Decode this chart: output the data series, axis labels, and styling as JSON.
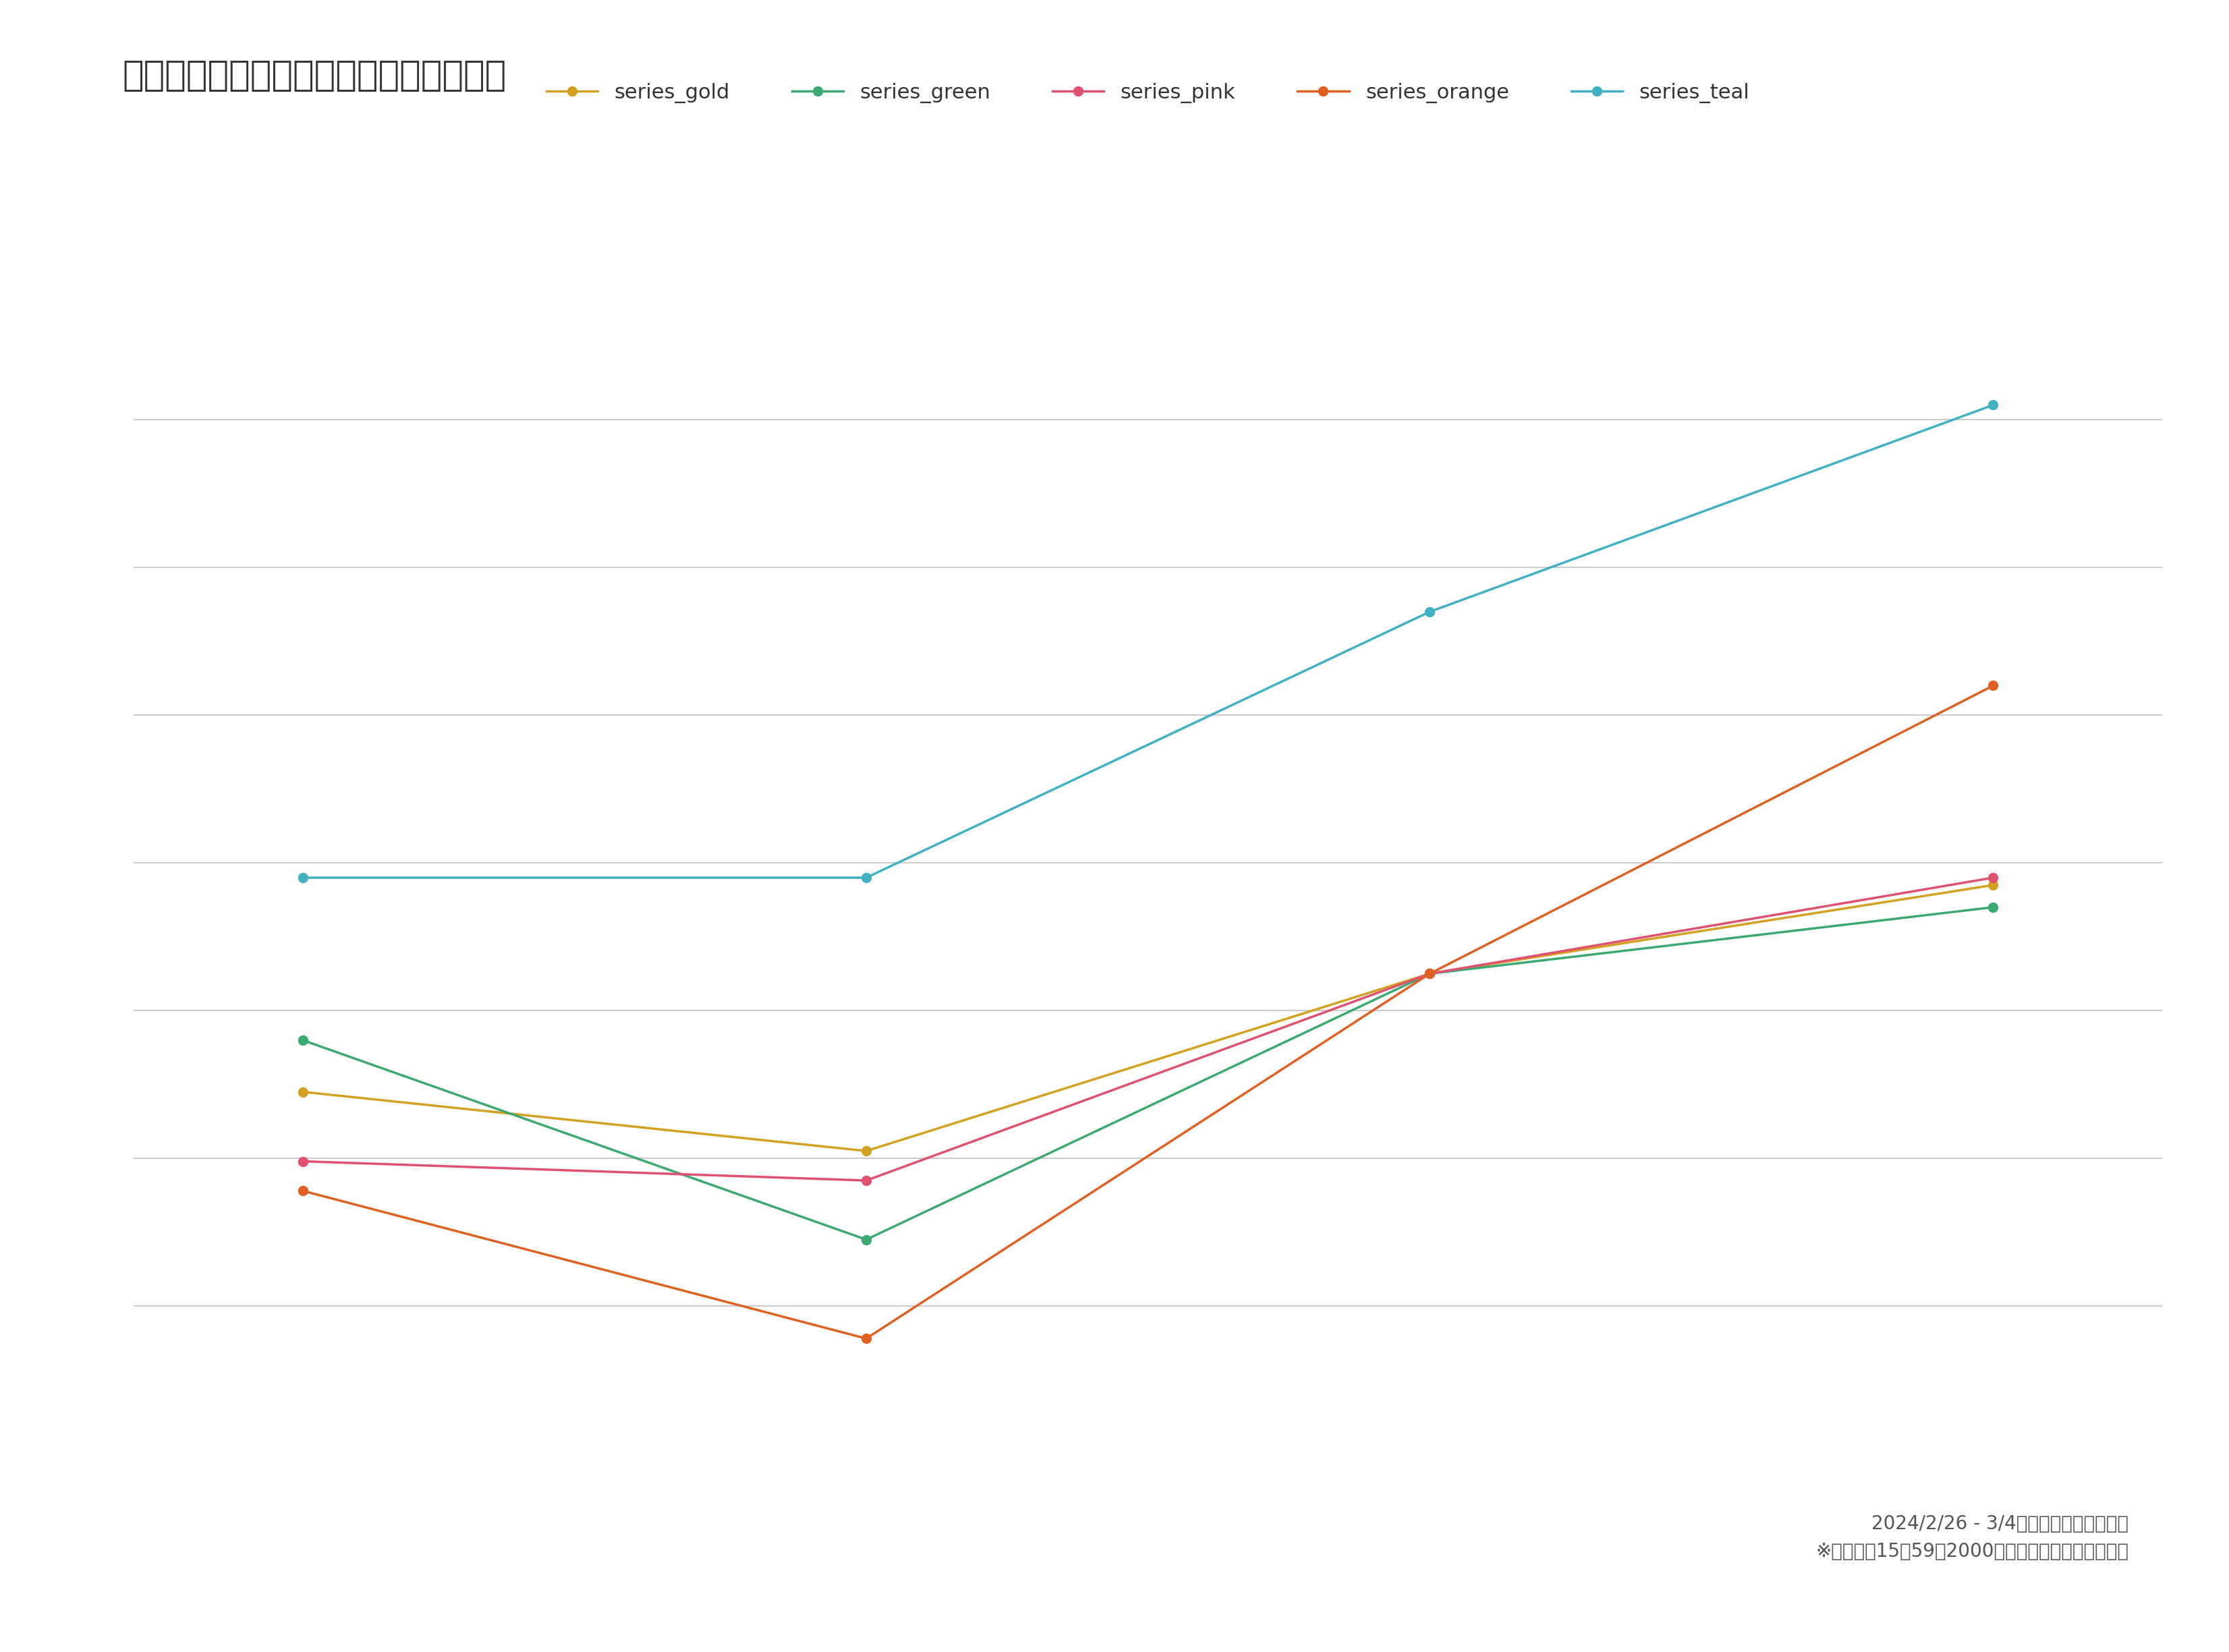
{
  "title": "マトリクス項目数別のエラー回答発生率",
  "background_color": "#ffffff",
  "plot_bg_color": "#ffffff",
  "text_color": "#333333",
  "grid_color": "#cccccc",
  "x_values": [
    1,
    2,
    3,
    4
  ],
  "series": [
    {
      "name": "series_gold",
      "color": "#d4a020",
      "values": [
        0.295,
        0.255,
        0.375,
        0.435
      ]
    },
    {
      "name": "series_green",
      "color": "#3aaa70",
      "values": [
        0.33,
        0.195,
        0.375,
        0.42
      ]
    },
    {
      "name": "series_pink",
      "color": "#e05070",
      "values": [
        0.248,
        0.235,
        0.375,
        0.44
      ]
    },
    {
      "name": "series_orange",
      "color": "#e06020",
      "values": [
        0.228,
        0.128,
        0.375,
        0.57
      ]
    },
    {
      "name": "series_teal",
      "color": "#40b0c4",
      "values": [
        0.44,
        0.44,
        0.62,
        0.76
      ]
    }
  ],
  "ylim_min": 0.05,
  "ylim_max": 0.9,
  "grid_lines": [
    0.15,
    0.25,
    0.35,
    0.45,
    0.55,
    0.65,
    0.75
  ],
  "xlim_min": 0.7,
  "xlim_max": 4.3,
  "footnote_line1": "2024/2/26 - 3/4実施　インデージ調べ",
  "footnote_line2": "※各国男女15〜59歳2000名のアンケート結果を集計",
  "title_fontsize": 38,
  "legend_fontsize": 22,
  "footnote_fontsize": 20,
  "marker_size": 10,
  "line_width": 2.5
}
